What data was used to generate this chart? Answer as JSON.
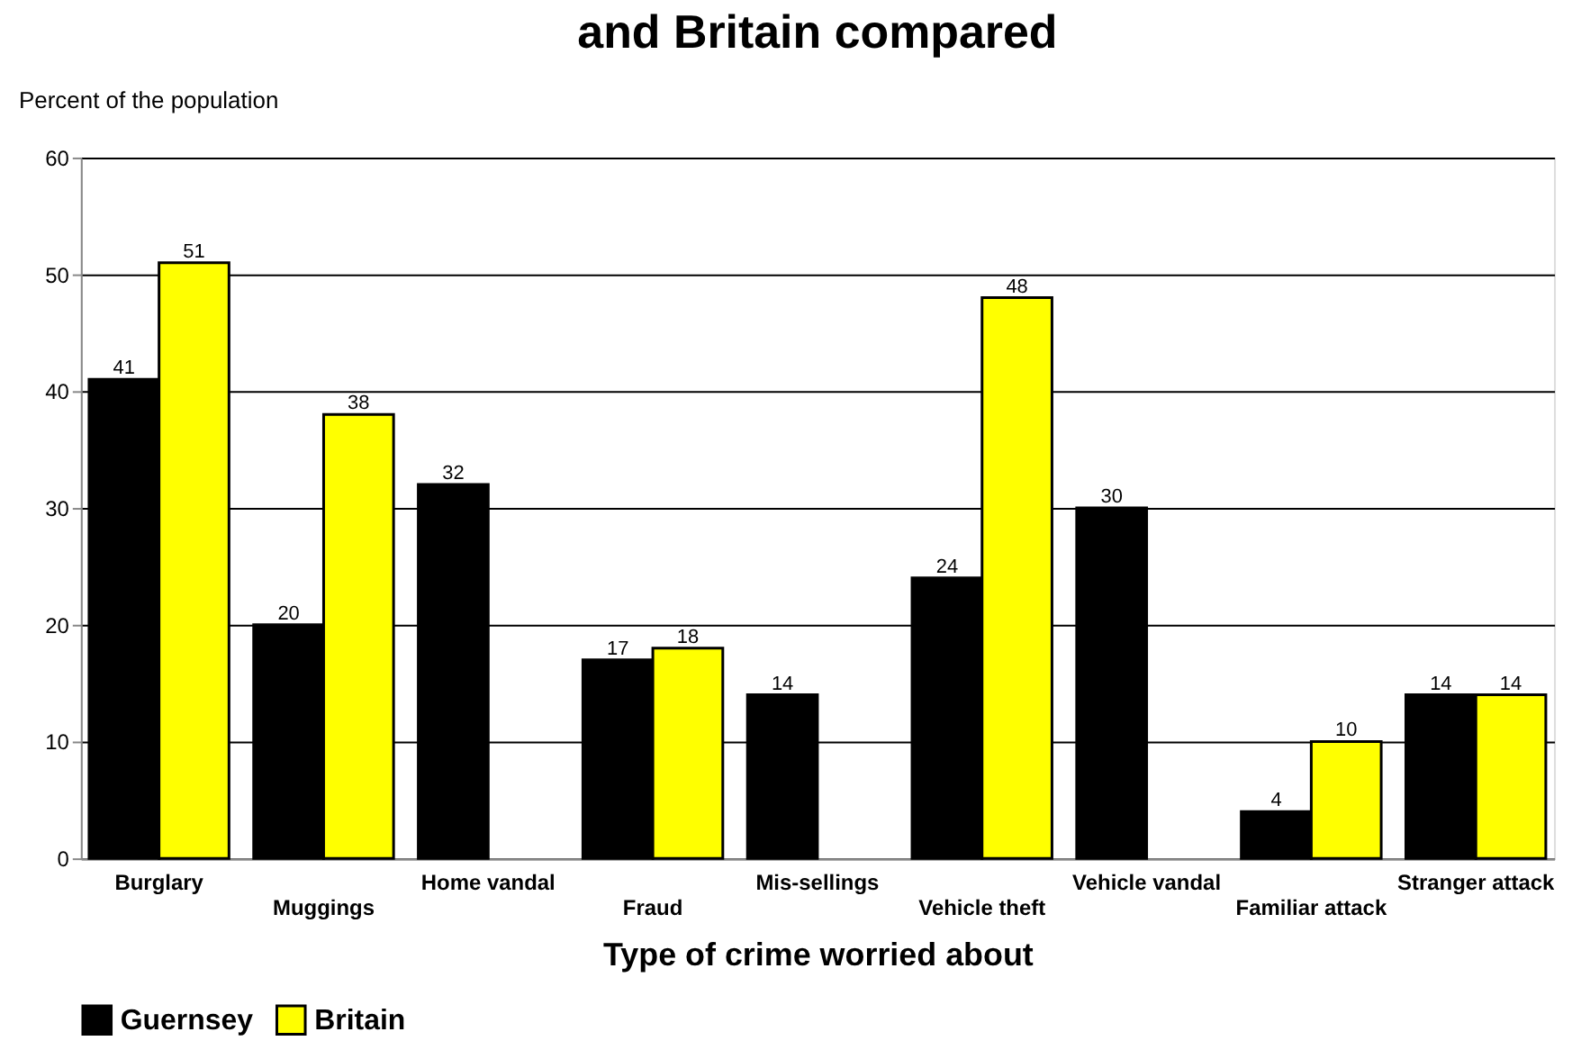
{
  "chart_data": {
    "type": "bar",
    "title": "and Britain compared",
    "ylabel": "Percent of the population",
    "xlabel": "Type of crime worried about",
    "categories": [
      "Burglary",
      "Muggings",
      "Home vandal",
      "Fraud",
      "Mis-sellings",
      "Vehicle theft",
      "Vehicle vandal",
      "Familiar attack",
      "Stranger attack"
    ],
    "series": [
      {
        "name": "Guernsey",
        "color": "#000000",
        "values": [
          41,
          20,
          32,
          17,
          14,
          24,
          30,
          4,
          14
        ]
      },
      {
        "name": "Britain",
        "color": "#ffff00",
        "values": [
          51,
          38,
          null,
          18,
          null,
          48,
          null,
          10,
          14
        ]
      }
    ],
    "ylim": [
      0,
      60
    ],
    "yticks": [
      0,
      10,
      20,
      30,
      40,
      50,
      60
    ],
    "grid": "y",
    "legend": "bottom",
    "data_labels": true
  }
}
